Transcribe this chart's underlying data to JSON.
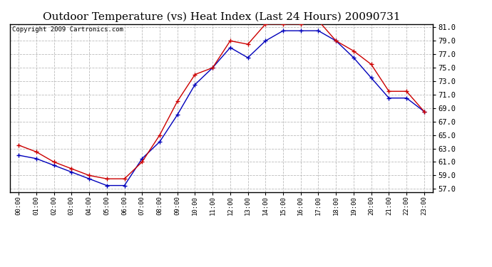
{
  "title": "Outdoor Temperature (vs) Heat Index (Last 24 Hours) 20090731",
  "copyright": "Copyright 2009 Cartronics.com",
  "x_labels": [
    "00:00",
    "01:00",
    "02:00",
    "03:00",
    "04:00",
    "05:00",
    "06:00",
    "07:00",
    "08:00",
    "09:00",
    "10:00",
    "11:00",
    "12:00",
    "13:00",
    "14:00",
    "15:00",
    "16:00",
    "17:00",
    "18:00",
    "19:00",
    "20:00",
    "21:00",
    "22:00",
    "23:00"
  ],
  "temp_blue": [
    62.0,
    61.5,
    60.5,
    59.5,
    58.5,
    57.5,
    57.5,
    61.5,
    64.0,
    68.0,
    72.5,
    75.0,
    78.0,
    76.5,
    79.0,
    80.5,
    80.5,
    80.5,
    79.0,
    76.5,
    73.5,
    70.5,
    70.5,
    68.5
  ],
  "heat_red": [
    63.5,
    62.5,
    61.0,
    60.0,
    59.0,
    58.5,
    58.5,
    61.0,
    65.0,
    70.0,
    74.0,
    75.0,
    79.0,
    78.5,
    81.5,
    81.5,
    81.5,
    82.0,
    79.0,
    77.5,
    75.5,
    71.5,
    71.5,
    68.5
  ],
  "ylim": [
    56.5,
    81.5
  ],
  "yticks": [
    57.0,
    59.0,
    61.0,
    63.0,
    65.0,
    67.0,
    69.0,
    71.0,
    73.0,
    75.0,
    77.0,
    79.0,
    81.0
  ],
  "bg_color": "#ffffff",
  "grid_color": "#bbbbbb",
  "blue_color": "#0000bb",
  "red_color": "#cc0000",
  "title_fontsize": 11,
  "copyright_fontsize": 6.5
}
